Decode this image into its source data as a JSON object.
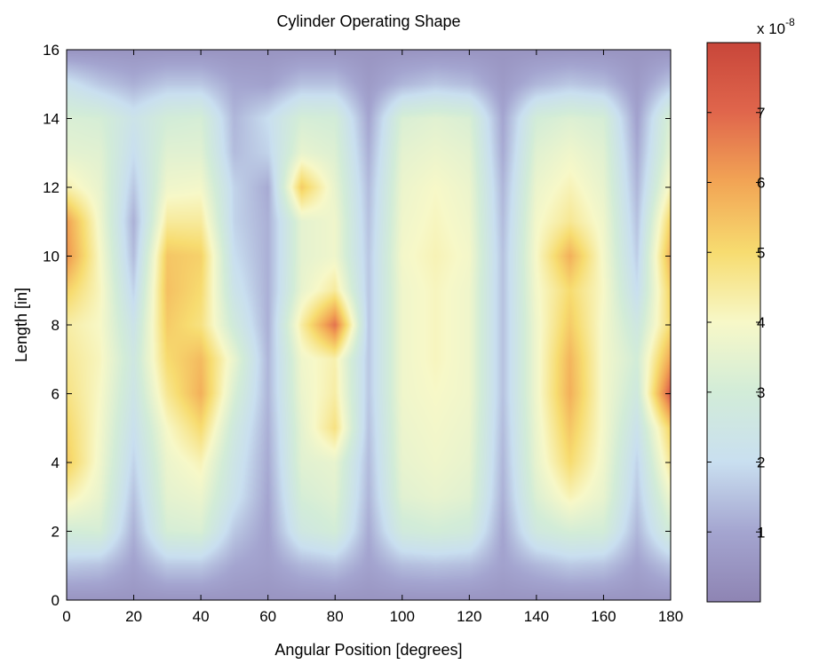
{
  "chart_data": {
    "type": "heatmap",
    "title": "Cylinder Operating Shape",
    "xlabel": "Angular Position [degrees]",
    "ylabel": "Length [in]",
    "xlim": [
      0,
      180
    ],
    "ylim": [
      0,
      16
    ],
    "xticks": [
      "0",
      "20",
      "40",
      "60",
      "80",
      "100",
      "120",
      "140",
      "160",
      "180"
    ],
    "yticks": [
      "0",
      "2",
      "4",
      "6",
      "8",
      "10",
      "12",
      "14",
      "16"
    ],
    "grid": false,
    "colorbar": {
      "range": [
        0,
        8
      ],
      "ticks": [
        "1",
        "2",
        "3",
        "4",
        "5",
        "6",
        "7"
      ],
      "exponent_base": "x 10",
      "exponent_power": "-8",
      "colormap": [
        "#8e84b3",
        "#a4a5d0",
        "#c9dff0",
        "#d2ecd8",
        "#f7f8c8",
        "#f7dc70",
        "#f2a555",
        "#e0664c",
        "#c8463a"
      ]
    },
    "x": [
      0,
      10,
      20,
      30,
      40,
      50,
      60,
      70,
      80,
      90,
      100,
      110,
      120,
      130,
      140,
      150,
      160,
      170,
      180
    ],
    "y": [
      0,
      1,
      2,
      3,
      4,
      5,
      6,
      7,
      8,
      9,
      10,
      11,
      12,
      13,
      14,
      15,
      16
    ],
    "z": [
      [
        0.5,
        0.5,
        0.5,
        0.5,
        0.5,
        0.5,
        0.5,
        0.5,
        0.5,
        0.5,
        0.5,
        0.5,
        0.5,
        0.5,
        0.5,
        0.5,
        0.5,
        0.5,
        0.5
      ],
      [
        1.6,
        1.5,
        0.9,
        1.6,
        1.6,
        1.0,
        0.8,
        1.3,
        1.5,
        0.9,
        1.4,
        1.5,
        1.4,
        0.9,
        1.3,
        1.6,
        1.5,
        0.9,
        1.5
      ],
      [
        3.0,
        3.1,
        1.2,
        3.1,
        3.2,
        1.6,
        0.9,
        2.6,
        3.0,
        1.1,
        2.8,
        3.0,
        2.8,
        1.0,
        2.7,
        3.1,
        3.0,
        1.3,
        3.0
      ],
      [
        4.3,
        3.6,
        1.5,
        3.5,
        3.7,
        2.2,
        1.0,
        3.1,
        3.4,
        1.3,
        3.4,
        3.6,
        3.4,
        1.2,
        3.3,
        4.2,
        3.6,
        1.6,
        3.8
      ],
      [
        5.3,
        3.8,
        1.8,
        3.7,
        4.2,
        2.4,
        1.1,
        3.4,
        3.6,
        1.4,
        3.6,
        3.8,
        3.6,
        1.3,
        3.6,
        5.0,
        3.8,
        1.8,
        4.6
      ],
      [
        5.1,
        3.9,
        2.1,
        4.0,
        5.0,
        2.7,
        1.2,
        3.5,
        4.8,
        1.5,
        3.7,
        3.9,
        3.7,
        1.4,
        3.7,
        5.4,
        3.9,
        2.2,
        5.2
      ],
      [
        4.8,
        4.0,
        2.4,
        4.6,
        5.8,
        3.2,
        1.3,
        3.7,
        4.4,
        1.6,
        3.8,
        4.0,
        3.8,
        1.5,
        3.8,
        5.8,
        3.9,
        2.7,
        7.3
      ],
      [
        4.6,
        4.1,
        2.6,
        5.0,
        5.6,
        3.6,
        1.3,
        3.8,
        4.3,
        1.6,
        3.8,
        4.1,
        3.8,
        1.5,
        3.8,
        5.7,
        3.9,
        3.0,
        6.0
      ],
      [
        4.4,
        4.0,
        2.3,
        5.3,
        4.8,
        2.8,
        1.2,
        4.4,
        6.8,
        1.6,
        3.8,
        4.1,
        3.8,
        1.5,
        3.8,
        5.3,
        3.9,
        2.6,
        5.0
      ],
      [
        5.2,
        4.1,
        1.8,
        5.5,
        5.0,
        2.3,
        1.2,
        3.6,
        4.5,
        1.6,
        3.8,
        4.1,
        3.8,
        1.5,
        3.9,
        5.0,
        4.0,
        2.0,
        5.2
      ],
      [
        6.3,
        4.0,
        1.4,
        5.4,
        5.2,
        2.0,
        1.2,
        3.5,
        3.8,
        1.6,
        3.9,
        4.2,
        3.9,
        1.5,
        4.0,
        5.8,
        3.9,
        1.7,
        5.8
      ],
      [
        6.1,
        3.8,
        1.2,
        4.5,
        4.5,
        1.8,
        1.2,
        3.5,
        3.8,
        1.5,
        3.8,
        4.1,
        3.8,
        1.4,
        3.9,
        4.6,
        3.8,
        1.5,
        5.2
      ],
      [
        4.3,
        3.6,
        1.6,
        3.8,
        3.9,
        1.8,
        1.1,
        5.3,
        3.6,
        1.4,
        3.7,
        4.0,
        3.7,
        1.3,
        3.7,
        4.2,
        3.6,
        1.3,
        4.2
      ],
      [
        3.5,
        3.4,
        2.0,
        3.4,
        3.4,
        1.4,
        1.8,
        3.6,
        3.3,
        1.2,
        3.5,
        3.7,
        3.5,
        1.1,
        3.4,
        3.8,
        3.4,
        1.1,
        3.6
      ],
      [
        3.2,
        3.1,
        2.3,
        3.0,
        3.1,
        1.3,
        2.0,
        3.1,
        3.0,
        1.0,
        3.2,
        3.4,
        3.2,
        1.0,
        3.0,
        3.3,
        3.1,
        0.9,
        3.3
      ],
      [
        2.2,
        1.6,
        1.2,
        1.6,
        1.6,
        1.0,
        0.9,
        1.5,
        1.5,
        0.7,
        1.3,
        1.6,
        1.4,
        0.7,
        1.3,
        1.6,
        1.4,
        0.7,
        1.6
      ],
      [
        0.5,
        0.5,
        0.5,
        0.5,
        0.5,
        0.5,
        0.5,
        0.5,
        0.5,
        0.5,
        0.5,
        0.5,
        0.5,
        0.5,
        0.5,
        0.5,
        0.5,
        0.5,
        0.5
      ]
    ]
  }
}
